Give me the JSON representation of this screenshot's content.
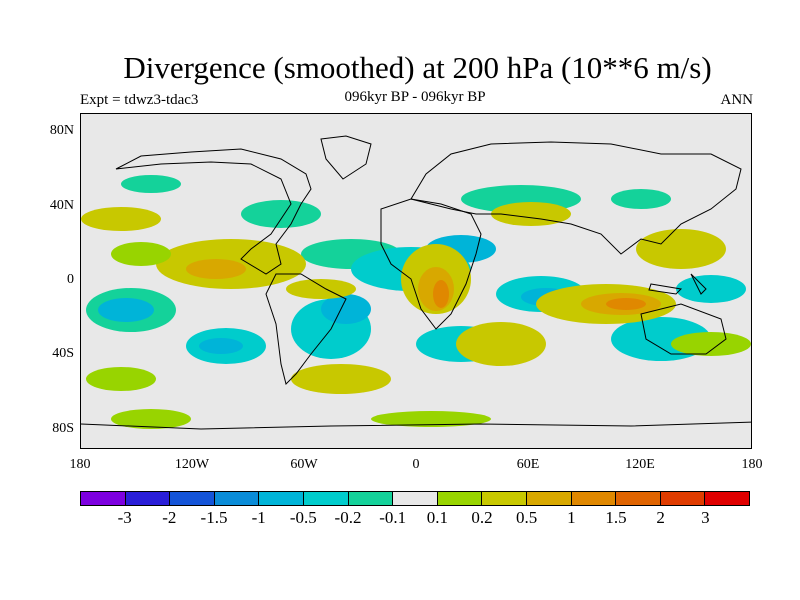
{
  "title": "Divergence (smoothed) at 200 hPa (10**6 m/s)",
  "subtitle": "096kyr BP - 096kyr BP",
  "left_label": "Expt = tdwz3-tdac3",
  "right_label": "ANN",
  "y_ticks": [
    "80N",
    "40N",
    "0",
    "40S",
    "80S"
  ],
  "x_ticks": [
    "180",
    "120W",
    "60W",
    "0",
    "60E",
    "120E",
    "180"
  ],
  "colorbar": {
    "colors": [
      "#7d00e0",
      "#2a1ed8",
      "#1454d8",
      "#0a8cd8",
      "#00b4d8",
      "#00cccc",
      "#14d29a",
      "#e8e8e8",
      "#98d400",
      "#c8c800",
      "#d8a800",
      "#e08800",
      "#e06400",
      "#e03c00",
      "#e00000"
    ],
    "labels": [
      "-3",
      "-2",
      "-1.5",
      "-1",
      "-0.5",
      "-0.2",
      "-0.1",
      "0.1",
      "0.2",
      "0.5",
      "1",
      "1.5",
      "2",
      "3"
    ]
  }
}
